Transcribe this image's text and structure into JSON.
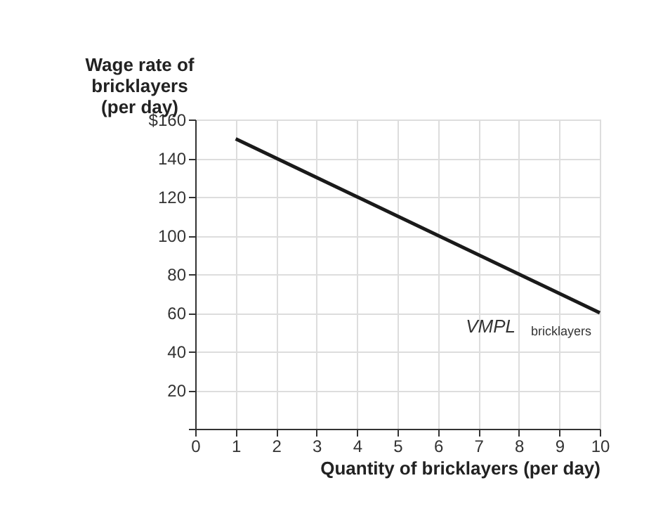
{
  "chart_data": {
    "type": "line",
    "xlabel": "Quantity of bricklayers (per day)",
    "ylabel": "Wage rate of\nbricklayers\n(per day)",
    "x": [
      1,
      10
    ],
    "series": [
      {
        "name": "VMPL$_{bricklayers}$",
        "color": "#1a1a1a",
        "values": [
          150,
          60
        ]
      }
    ],
    "xlim": [
      0,
      10
    ],
    "xticks": [
      0,
      1,
      2,
      3,
      4,
      5,
      6,
      7,
      8,
      9,
      10
    ],
    "ylim": [
      0,
      160
    ],
    "yticks": [
      {
        "value": 0,
        "label": null
      },
      20,
      40,
      60,
      80,
      100,
      120,
      140,
      {
        "value": 160,
        "label": "$160"
      }
    ],
    "grid": true,
    "marker": "none",
    "line_style": "solid"
  }
}
